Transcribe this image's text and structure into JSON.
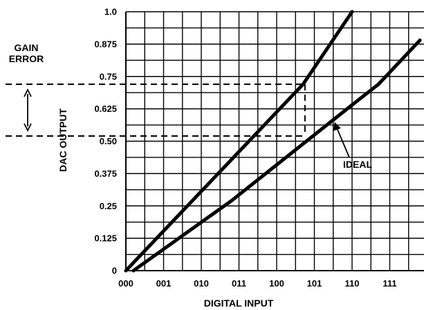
{
  "chart_data": {
    "type": "line",
    "title": "",
    "xlabel": "DIGITAL INPUT",
    "ylabel": "DAC OUTPUT",
    "x_tick_labels": [
      "000",
      "001",
      "010",
      "011",
      "100",
      "101",
      "110",
      "111"
    ],
    "y_tick_labels": [
      "0",
      "0.125",
      "0.25",
      "0.375",
      "0.50",
      "0.625",
      "0.75",
      "0.875",
      "1.0"
    ],
    "xlim": [
      0,
      8
    ],
    "ylim": [
      0,
      1.0
    ],
    "grid": true,
    "series": [
      {
        "role": "gain-error",
        "color": "#000000",
        "points": [
          [
            0,
            0
          ],
          [
            4.7,
            0.72
          ],
          [
            6.0,
            1.0
          ]
        ]
      },
      {
        "role": "ideal",
        "color": "#000000",
        "points": [
          [
            0.2,
            0
          ],
          [
            2.8,
            0.27
          ],
          [
            6.0,
            0.64
          ],
          [
            6.7,
            0.72
          ],
          [
            7.8,
            0.89
          ]
        ]
      }
    ],
    "reference_lines": {
      "upper_level": 0.72,
      "lower_level": 0.52,
      "input_code": 4.75
    },
    "annotations": {
      "gain_error_label_line1": "GAIN",
      "gain_error_label_line2": "ERROR",
      "ideal_label": "IDEAL",
      "ideal_arrow_target": [
        5.5,
        0.59
      ]
    }
  }
}
